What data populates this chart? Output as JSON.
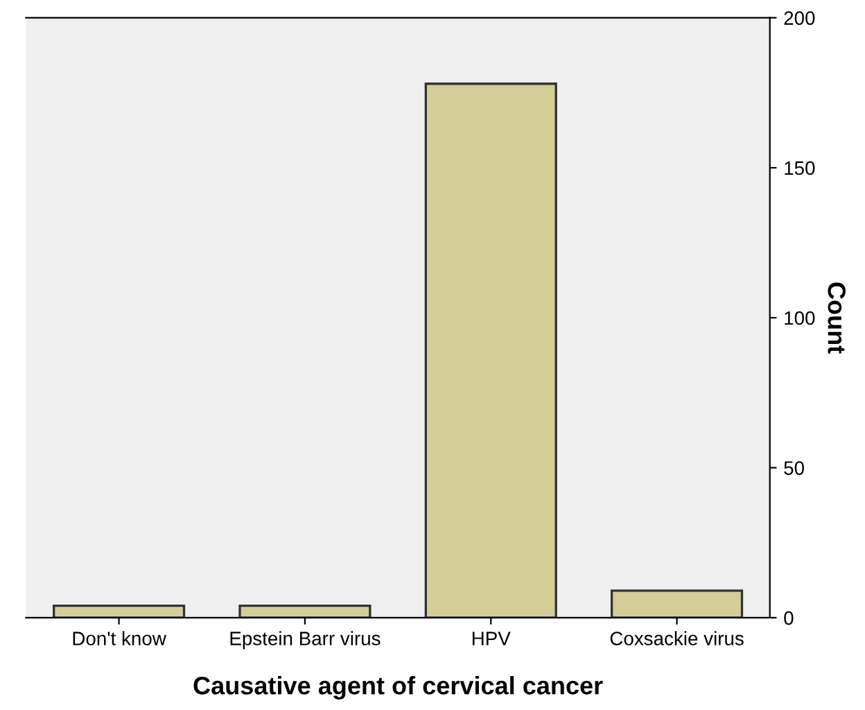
{
  "chart_data": {
    "type": "bar",
    "xlabel": "Causative agent of cervical cancer",
    "ylabel": "Count",
    "categories": [
      "Don't know",
      "Epstein Barr virus",
      "HPV",
      "Coxsackie virus"
    ],
    "values": [
      4,
      4,
      178,
      9
    ],
    "color": "#d3ce97",
    "ylim": [
      0,
      200
    ],
    "yticks": [
      0,
      50,
      100,
      150,
      200
    ],
    "grid": false
  }
}
